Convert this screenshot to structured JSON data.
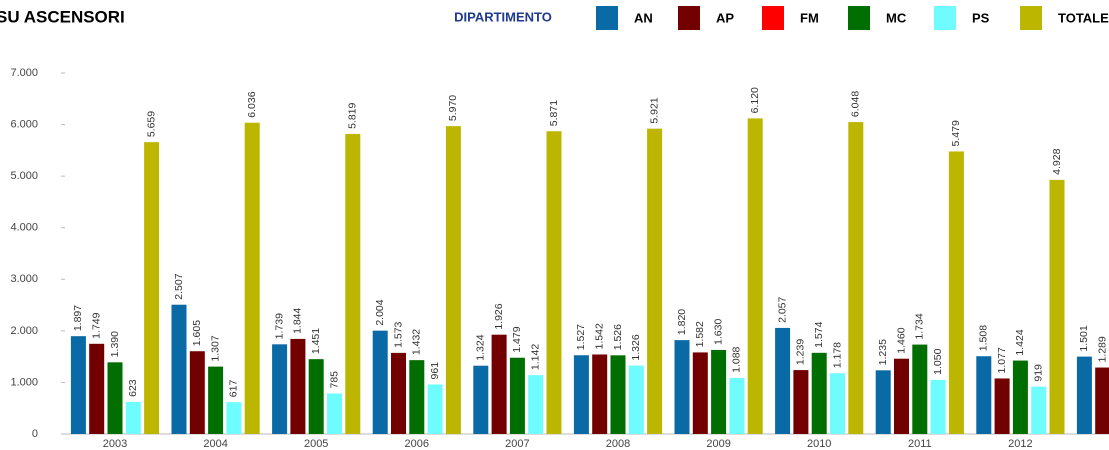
{
  "chart_data": {
    "type": "bar",
    "title": "SU ASCENSORI",
    "legend_title": "DIPARTIMENTO",
    "categories": [
      "2003",
      "2004",
      "2005",
      "2006",
      "2007",
      "2008",
      "2009",
      "2010",
      "2011",
      "2012",
      null
    ],
    "series": [
      {
        "name": "AN",
        "color": "#0a6aa5",
        "values": [
          1897,
          2507,
          1739,
          2004,
          1324,
          1527,
          1820,
          2057,
          1235,
          1508,
          1501
        ],
        "value_labels": [
          "1.897",
          "2.507",
          "1.739",
          "2.004",
          "1.324",
          "1.527",
          "1.820",
          "2.057",
          "1.235",
          "1.508",
          "1.501"
        ]
      },
      {
        "name": "AP",
        "color": "#720000",
        "values": [
          1749,
          1605,
          1844,
          1573,
          1926,
          1542,
          1582,
          1239,
          1460,
          1077,
          1289
        ],
        "value_labels": [
          "1.749",
          "1.605",
          "1.844",
          "1.573",
          "1.926",
          "1.542",
          "1.582",
          "1.239",
          "1.460",
          "1.077",
          "1.289"
        ]
      },
      {
        "name": "FM",
        "color": "#ff0000",
        "values": [
          null,
          null,
          null,
          null,
          null,
          null,
          null,
          null,
          null,
          null,
          null
        ]
      },
      {
        "name": "MC",
        "color": "#006e00",
        "values": [
          1390,
          1307,
          1451,
          1432,
          1479,
          1526,
          1630,
          1574,
          1734,
          1424,
          null
        ],
        "value_labels": [
          "1.390",
          "1.307",
          "1.451",
          "1.432",
          "1.479",
          "1.526",
          "1.630",
          "1.574",
          "1.734",
          "1.424",
          null
        ]
      },
      {
        "name": "PS",
        "color": "#6ffcff",
        "values": [
          623,
          617,
          785,
          961,
          1142,
          1326,
          1088,
          1178,
          1050,
          919,
          null
        ],
        "value_labels": [
          "623",
          "617",
          "785",
          "961",
          "1.142",
          "1.326",
          "1.088",
          "1.178",
          "1.050",
          "919",
          null
        ]
      },
      {
        "name": "TOTALE",
        "color": "#bdb600",
        "values": [
          5659,
          6036,
          5819,
          5970,
          5871,
          5921,
          6120,
          6048,
          5479,
          4928,
          null
        ],
        "value_labels": [
          "5.659",
          "6.036",
          "5.819",
          "5.970",
          "5.871",
          "5.921",
          "6.120",
          "6.048",
          "5.479",
          "4.928",
          null
        ]
      }
    ],
    "ylim": [
      0,
      7000
    ],
    "yticks": [
      0,
      {
        "value": 1000,
        "label": "1.000"
      },
      {
        "value": 2000,
        "label": "2.000"
      },
      {
        "value": 3000,
        "label": "3.000"
      },
      {
        "value": 4000,
        "label": "4.000"
      },
      {
        "value": 5000,
        "label": "5.000"
      },
      {
        "value": 6000,
        "label": "6.000"
      },
      {
        "value": 7000,
        "label": "7.000"
      }
    ]
  }
}
